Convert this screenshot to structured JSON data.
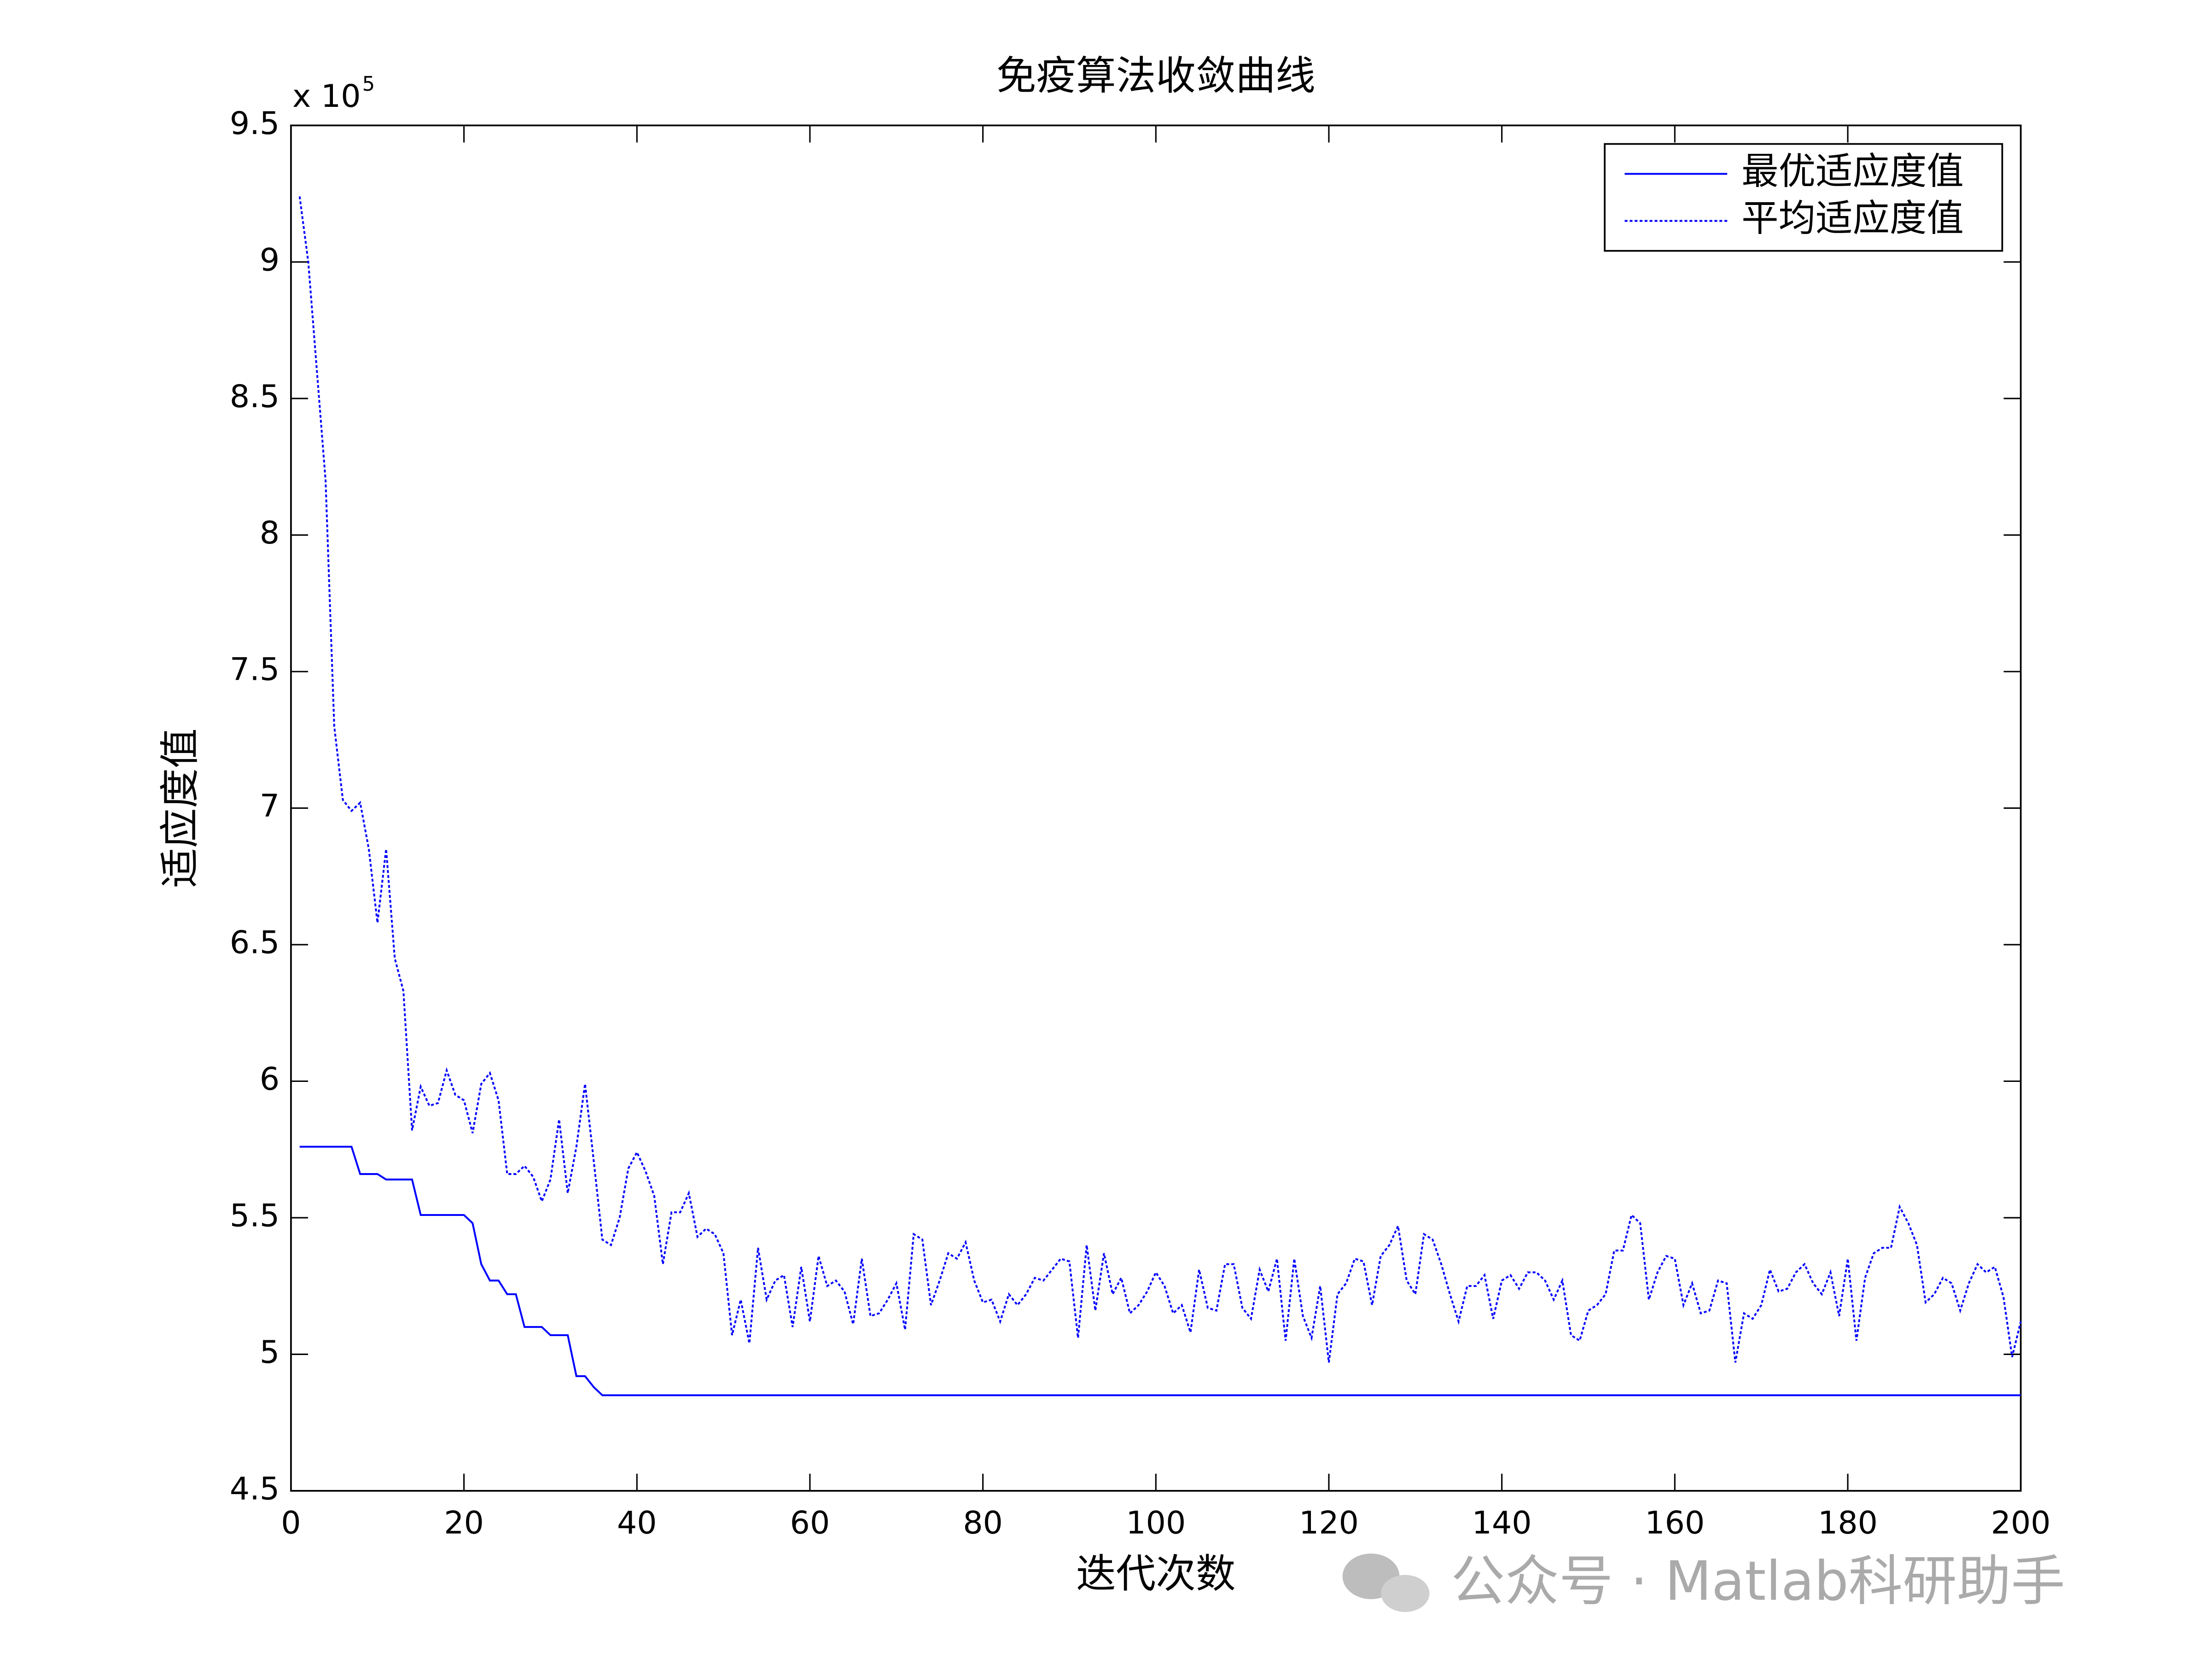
{
  "chart_data": {
    "type": "line",
    "title": "免疫算法收敛曲线",
    "xlabel": "迭代次数",
    "ylabel": "适应度值",
    "y_multiplier": {
      "base": "x 10",
      "exponent": "5"
    },
    "watermark": "公众号 · Matlab科研助手",
    "xlim": [
      0,
      200
    ],
    "xticks": [
      0,
      20,
      40,
      60,
      80,
      100,
      120,
      140,
      160,
      180,
      200
    ],
    "ylim": [
      4.5,
      9.5
    ],
    "yticks": [
      4.5,
      5,
      5.5,
      6,
      6.5,
      7,
      7.5,
      8,
      8.5,
      9,
      9.5
    ],
    "grid": false,
    "legend": "upper right",
    "x": [
      1,
      2,
      3,
      4,
      5,
      6,
      7,
      8,
      9,
      10,
      11,
      12,
      13,
      14,
      15,
      16,
      17,
      18,
      19,
      20,
      21,
      22,
      23,
      24,
      25,
      26,
      27,
      28,
      29,
      30,
      31,
      32,
      33,
      34,
      35,
      36,
      37,
      38,
      39,
      40,
      41,
      42,
      43,
      44,
      45,
      46,
      47,
      48,
      49,
      50,
      51,
      52,
      53,
      54,
      55,
      56,
      57,
      58,
      59,
      60,
      61,
      62,
      63,
      64,
      65,
      66,
      67,
      68,
      69,
      70,
      71,
      72,
      73,
      74,
      75,
      76,
      77,
      78,
      79,
      80,
      81,
      82,
      83,
      84,
      85,
      86,
      87,
      88,
      89,
      90,
      91,
      92,
      93,
      94,
      95,
      96,
      97,
      98,
      99,
      100,
      101,
      102,
      103,
      104,
      105,
      106,
      107,
      108,
      109,
      110,
      111,
      112,
      113,
      114,
      115,
      116,
      117,
      118,
      119,
      120,
      121,
      122,
      123,
      124,
      125,
      126,
      127,
      128,
      129,
      130,
      131,
      132,
      133,
      134,
      135,
      136,
      137,
      138,
      139,
      140,
      141,
      142,
      143,
      144,
      145,
      146,
      147,
      148,
      149,
      150,
      151,
      152,
      153,
      154,
      155,
      156,
      157,
      158,
      159,
      160,
      161,
      162,
      163,
      164,
      165,
      166,
      167,
      168,
      169,
      170,
      171,
      172,
      173,
      174,
      175,
      176,
      177,
      178,
      179,
      180,
      181,
      182,
      183,
      184,
      185,
      186,
      187,
      188,
      189,
      190,
      191,
      192,
      193,
      194,
      195,
      196,
      197,
      198,
      199,
      200
    ],
    "series": [
      {
        "name": "最优适应度值",
        "color": "#0000ff",
        "linestyle": "solid",
        "values": [
          5.76,
          5.76,
          5.76,
          5.76,
          5.76,
          5.76,
          5.76,
          5.66,
          5.66,
          5.66,
          5.64,
          5.64,
          5.64,
          5.64,
          5.51,
          5.51,
          5.51,
          5.51,
          5.51,
          5.51,
          5.48,
          5.33,
          5.27,
          5.27,
          5.22,
          5.22,
          5.1,
          5.1,
          5.1,
          5.07,
          5.07,
          5.07,
          4.92,
          4.92,
          4.88,
          4.85,
          4.85,
          4.85,
          4.85,
          4.85,
          4.85,
          4.85,
          4.85,
          4.85,
          4.85,
          4.85,
          4.85,
          4.85,
          4.85,
          4.85,
          4.85,
          4.85,
          4.85,
          4.85,
          4.85,
          4.85,
          4.85,
          4.85,
          4.85,
          4.85,
          4.85,
          4.85,
          4.85,
          4.85,
          4.85,
          4.85,
          4.85,
          4.85,
          4.85,
          4.85,
          4.85,
          4.85,
          4.85,
          4.85,
          4.85,
          4.85,
          4.85,
          4.85,
          4.85,
          4.85,
          4.85,
          4.85,
          4.85,
          4.85,
          4.85,
          4.85,
          4.85,
          4.85,
          4.85,
          4.85,
          4.85,
          4.85,
          4.85,
          4.85,
          4.85,
          4.85,
          4.85,
          4.85,
          4.85,
          4.85,
          4.85,
          4.85,
          4.85,
          4.85,
          4.85,
          4.85,
          4.85,
          4.85,
          4.85,
          4.85,
          4.85,
          4.85,
          4.85,
          4.85,
          4.85,
          4.85,
          4.85,
          4.85,
          4.85,
          4.85,
          4.85,
          4.85,
          4.85,
          4.85,
          4.85,
          4.85,
          4.85,
          4.85,
          4.85,
          4.85,
          4.85,
          4.85,
          4.85,
          4.85,
          4.85,
          4.85,
          4.85,
          4.85,
          4.85,
          4.85,
          4.85,
          4.85,
          4.85,
          4.85,
          4.85,
          4.85,
          4.85,
          4.85,
          4.85,
          4.85,
          4.85,
          4.85,
          4.85,
          4.85,
          4.85,
          4.85,
          4.85,
          4.85,
          4.85,
          4.85,
          4.85,
          4.85,
          4.85,
          4.85,
          4.85,
          4.85,
          4.85,
          4.85,
          4.85,
          4.85,
          4.85,
          4.85,
          4.85,
          4.85,
          4.85,
          4.85,
          4.85,
          4.85,
          4.85,
          4.85,
          4.85,
          4.85,
          4.85,
          4.85,
          4.85,
          4.85,
          4.85,
          4.85,
          4.85,
          4.85,
          4.85,
          4.85,
          4.85,
          4.85,
          4.85,
          4.85,
          4.85,
          4.85,
          4.85,
          4.85
        ]
      },
      {
        "name": "平均适应度值",
        "color": "#0000ff",
        "linestyle": "dotted",
        "values": [
          9.24,
          9.0,
          8.6,
          8.2,
          7.3,
          7.03,
          6.99,
          7.02,
          6.85,
          6.58,
          6.85,
          6.45,
          6.33,
          5.82,
          5.98,
          5.91,
          5.92,
          6.04,
          5.95,
          5.93,
          5.81,
          5.99,
          6.03,
          5.93,
          5.66,
          5.66,
          5.69,
          5.65,
          5.56,
          5.64,
          5.86,
          5.59,
          5.76,
          5.99,
          5.71,
          5.42,
          5.4,
          5.5,
          5.68,
          5.74,
          5.67,
          5.58,
          5.33,
          5.52,
          5.52,
          5.59,
          5.43,
          5.46,
          5.44,
          5.37,
          5.07,
          5.2,
          5.04,
          5.39,
          5.2,
          5.27,
          5.29,
          5.1,
          5.32,
          5.12,
          5.36,
          5.25,
          5.27,
          5.23,
          5.11,
          5.35,
          5.14,
          5.15,
          5.2,
          5.26,
          5.09,
          5.44,
          5.42,
          5.18,
          5.27,
          5.37,
          5.35,
          5.41,
          5.27,
          5.19,
          5.2,
          5.12,
          5.22,
          5.18,
          5.22,
          5.28,
          5.27,
          5.31,
          5.35,
          5.34,
          5.06,
          5.4,
          5.16,
          5.37,
          5.22,
          5.28,
          5.15,
          5.18,
          5.23,
          5.3,
          5.25,
          5.15,
          5.18,
          5.08,
          5.31,
          5.17,
          5.16,
          5.33,
          5.33,
          5.17,
          5.13,
          5.31,
          5.23,
          5.35,
          5.05,
          5.35,
          5.14,
          5.06,
          5.25,
          4.97,
          5.22,
          5.26,
          5.35,
          5.34,
          5.18,
          5.36,
          5.4,
          5.47,
          5.27,
          5.22,
          5.44,
          5.42,
          5.33,
          5.22,
          5.12,
          5.25,
          5.25,
          5.29,
          5.13,
          5.27,
          5.29,
          5.24,
          5.3,
          5.3,
          5.27,
          5.2,
          5.27,
          5.07,
          5.05,
          5.16,
          5.18,
          5.22,
          5.38,
          5.38,
          5.51,
          5.48,
          5.2,
          5.3,
          5.36,
          5.35,
          5.18,
          5.26,
          5.15,
          5.16,
          5.27,
          5.26,
          4.97,
          5.15,
          5.13,
          5.18,
          5.31,
          5.23,
          5.24,
          5.3,
          5.33,
          5.26,
          5.22,
          5.3,
          5.14,
          5.35,
          5.05,
          5.28,
          5.37,
          5.39,
          5.39,
          5.54,
          5.48,
          5.4,
          5.19,
          5.22,
          5.28,
          5.26,
          5.16,
          5.26,
          5.33,
          5.3,
          5.32,
          5.21,
          4.99,
          5.12
        ]
      }
    ]
  }
}
